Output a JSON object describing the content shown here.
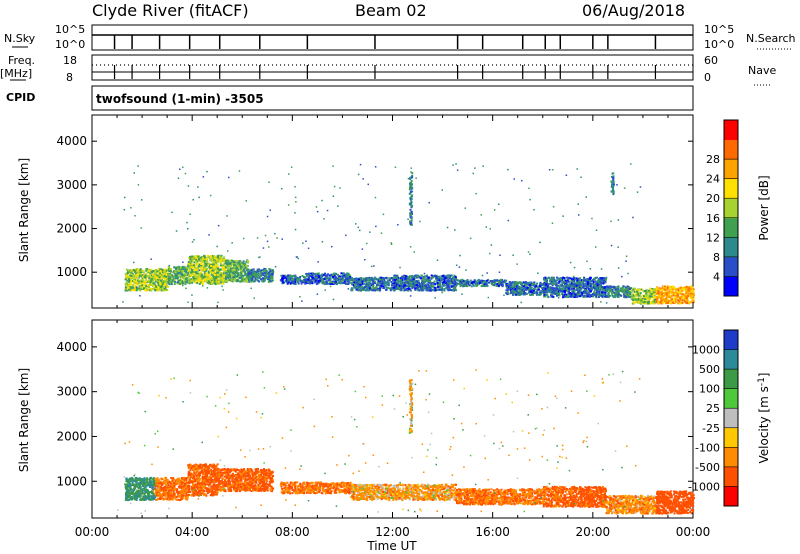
{
  "header": {
    "title": "Clyde River (fitACF)",
    "beam": "Beam 02",
    "date": "06/Aug/2018"
  },
  "params": {
    "nsky_label": "N.Sky",
    "nsearch_label": "N.Search",
    "freq_label": "Freq.",
    "freq_unit": "[MHz]",
    "nave_label": "Nave",
    "cpid_label": "CPID",
    "nsky_ticks": [
      "10^5",
      "10^0"
    ],
    "nsearch_ticks": [
      "10^5",
      "10^0"
    ],
    "freq_ticks": [
      "18",
      "8"
    ],
    "nave_ticks": [
      "60",
      "0"
    ],
    "cpid_text": "twofsound (1-min) -3505"
  },
  "chart_data": [
    {
      "type": "heatmap",
      "name": "power-panel",
      "xlabel": "",
      "ylabel": "Slant Range [km]",
      "xlim": [
        0,
        24
      ],
      "ylim": [
        180,
        4600
      ],
      "yticks": [
        1000,
        2000,
        3000,
        4000
      ],
      "colorbar": {
        "label": "Power [dB]",
        "ticks": [
          "4",
          "8",
          "12",
          "16",
          "20",
          "24",
          "28"
        ],
        "colors": [
          "#0000ff",
          "#2a4ec8",
          "#2d8a8a",
          "#3fa04f",
          "#a8d230",
          "#ffe000",
          "#ffa300",
          "#ff6a00",
          "#ff0000"
        ]
      },
      "clusters": [
        {
          "t": [
            1.3,
            3.0
          ],
          "r": [
            600,
            1100
          ],
          "value": 16
        },
        {
          "t": [
            3.0,
            3.8
          ],
          "r": [
            750,
            1150
          ],
          "value": 12
        },
        {
          "t": [
            3.8,
            5.3
          ],
          "r": [
            750,
            1400
          ],
          "value": 16
        },
        {
          "t": [
            5.3,
            6.2
          ],
          "r": [
            800,
            1300
          ],
          "value": 12
        },
        {
          "t": [
            6.2,
            7.2
          ],
          "r": [
            800,
            1100
          ],
          "value": 8
        },
        {
          "t": [
            7.5,
            8.5
          ],
          "r": [
            750,
            950
          ],
          "value": 6
        },
        {
          "t": [
            8.5,
            10.3
          ],
          "r": [
            750,
            1000
          ],
          "value": 6
        },
        {
          "t": [
            10.3,
            12.0
          ],
          "r": [
            600,
            900
          ],
          "value": 6
        },
        {
          "t": [
            12.0,
            14.5
          ],
          "r": [
            600,
            950
          ],
          "value": 6
        },
        {
          "t": [
            14.5,
            16.5
          ],
          "r": [
            700,
            850
          ],
          "value": 6
        },
        {
          "t": [
            16.5,
            18.0
          ],
          "r": [
            500,
            800
          ],
          "value": 6
        },
        {
          "t": [
            18.0,
            20.5
          ],
          "r": [
            450,
            900
          ],
          "value": 6
        },
        {
          "t": [
            20.5,
            21.5
          ],
          "r": [
            450,
            700
          ],
          "value": 8
        },
        {
          "t": [
            21.5,
            22.5
          ],
          "r": [
            300,
            650
          ],
          "value": 16
        },
        {
          "t": [
            22.5,
            24.0
          ],
          "r": [
            300,
            700
          ],
          "value": 24
        },
        {
          "t": [
            12.65,
            12.75
          ],
          "r": [
            2100,
            3300
          ],
          "value": 8
        },
        {
          "t": [
            20.7,
            20.8
          ],
          "r": [
            2800,
            3300
          ],
          "value": 8
        }
      ]
    },
    {
      "type": "heatmap",
      "name": "velocity-panel",
      "xlabel": "Time UT",
      "ylabel": "Slant Range [km]",
      "xlim": [
        0,
        24
      ],
      "ylim": [
        180,
        4600
      ],
      "xticks": [
        "00:00",
        "04:00",
        "08:00",
        "12:00",
        "16:00",
        "20:00",
        "00:00"
      ],
      "yticks": [
        1000,
        2000,
        3000,
        4000
      ],
      "colorbar": {
        "label": "Velocity [m s^-1]",
        "ticks": [
          "1000",
          "500",
          "100",
          "25",
          "-25",
          "-100",
          "-500",
          "-1000"
        ],
        "colors": [
          "#1e3cc8",
          "#2d8a9a",
          "#3c9a46",
          "#50c83c",
          "#bebebe",
          "#ffc800",
          "#ff8c00",
          "#ff5000",
          "#ff0000"
        ]
      },
      "clusters": [
        {
          "t": [
            1.3,
            2.5
          ],
          "r": [
            600,
            1100
          ],
          "value": 300
        },
        {
          "t": [
            2.5,
            3.8
          ],
          "r": [
            600,
            1100
          ],
          "value": -300
        },
        {
          "t": [
            3.8,
            5.0
          ],
          "r": [
            700,
            1400
          ],
          "value": -400
        },
        {
          "t": [
            5.0,
            7.2
          ],
          "r": [
            800,
            1300
          ],
          "value": -400
        },
        {
          "t": [
            7.5,
            10.3
          ],
          "r": [
            750,
            1000
          ],
          "value": -300
        },
        {
          "t": [
            10.3,
            14.5
          ],
          "r": [
            600,
            950
          ],
          "value": -150
        },
        {
          "t": [
            14.5,
            18.0
          ],
          "r": [
            500,
            850
          ],
          "value": -300
        },
        {
          "t": [
            18.0,
            20.5
          ],
          "r": [
            450,
            900
          ],
          "value": -400
        },
        {
          "t": [
            20.5,
            22.5
          ],
          "r": [
            300,
            700
          ],
          "value": -200
        },
        {
          "t": [
            22.5,
            24.0
          ],
          "r": [
            300,
            800
          ],
          "value": -500
        },
        {
          "t": [
            12.65,
            12.75
          ],
          "r": [
            2100,
            3300
          ],
          "value": -100
        }
      ]
    }
  ]
}
